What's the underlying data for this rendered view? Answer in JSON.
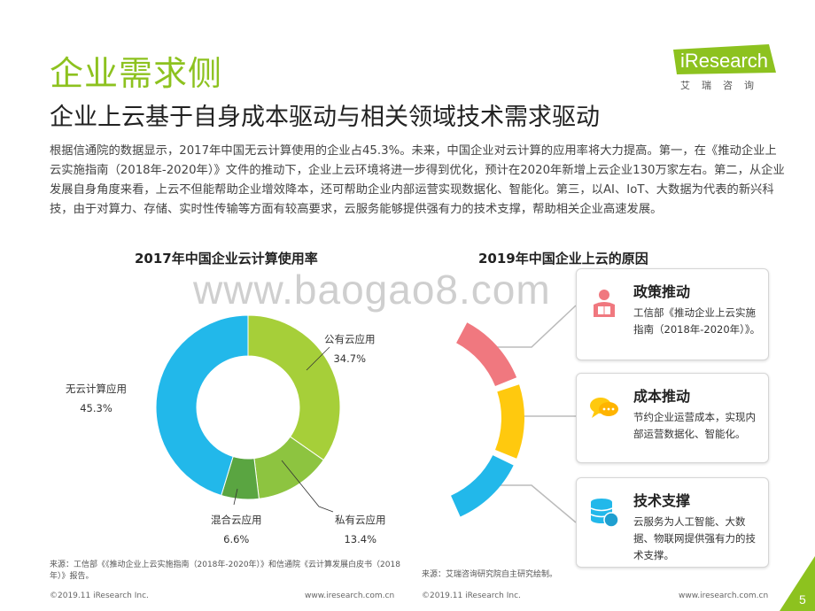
{
  "header": {
    "title": "企业需求侧",
    "subtitle": "企业上云基于自身成本驱动与相关领域技术需求驱动",
    "logo_text": "iResearch",
    "logo_cn": "艾瑞咨询"
  },
  "body_text": "根据信通院的数据显示，2017年中国无云计算使用的企业占45.3%。未来，中国企业对云计算的应用率将大力提高。第一，在《推动企业上云实施指南（2018年-2020年）》文件的推动下，企业上云环境将进一步得到优化，预计在2020年新增上云企业130万家左右。第二，从企业发展自身角度来看，上云不但能帮助企业增效降本，还可帮助企业内部运营实现数据化、智能化。第三，以AI、IoT、大数据为代表的新兴科技，由于对算力、存储、实时性传输等方面有较高要求，云服务能够提供强有力的技术支撑，帮助相关企业高速发展。",
  "watermark": "www.baogao8.com",
  "chart_data": [
    {
      "type": "pie",
      "title": "2017年中国企业云计算使用率",
      "categories": [
        "公有云应用",
        "私有云应用",
        "混合云应用",
        "无云计算应用"
      ],
      "values": [
        34.7,
        13.4,
        6.6,
        45.3
      ],
      "value_labels": [
        "34.7%",
        "13.4%",
        "6.6%",
        "45.3%"
      ],
      "colors": [
        "#a6cf39",
        "#8dc440",
        "#5aa541",
        "#22b8ea"
      ],
      "donut": true
    }
  ],
  "reasons": {
    "title": "2019年中国企业上云的原因",
    "arc_colors": [
      "#f0787f",
      "#ffc90e",
      "#22b8ea"
    ],
    "items": [
      {
        "title": "政策推动",
        "body": "工信部《推动企业上云实施指南（2018年-2020年）》。",
        "icon": "person-reading-icon"
      },
      {
        "title": "成本推动",
        "body": "节约企业运营成本，实现内部运营数据化、智能化。",
        "icon": "chat-bubbles-icon"
      },
      {
        "title": "技术支撑",
        "body": "云服务为人工智能、大数据、物联网提供强有力的技术支撑。",
        "icon": "database-icon"
      }
    ]
  },
  "sources": {
    "left": "来源：工信部《《推动企业上云实施指南（2018年-2020年）》和信通院《云计算发展白皮书（2018年）》报告。",
    "right": "来源：艾瑞咨询研究院自主研究绘制。"
  },
  "footer": {
    "copyright_left": "©2019.11 iResearch Inc.",
    "url_left": "www.iresearch.com.cn",
    "copyright_right": "©2019.11 iResearch Inc.",
    "url_right": "www.iresearch.com.cn",
    "page_number": "5"
  }
}
